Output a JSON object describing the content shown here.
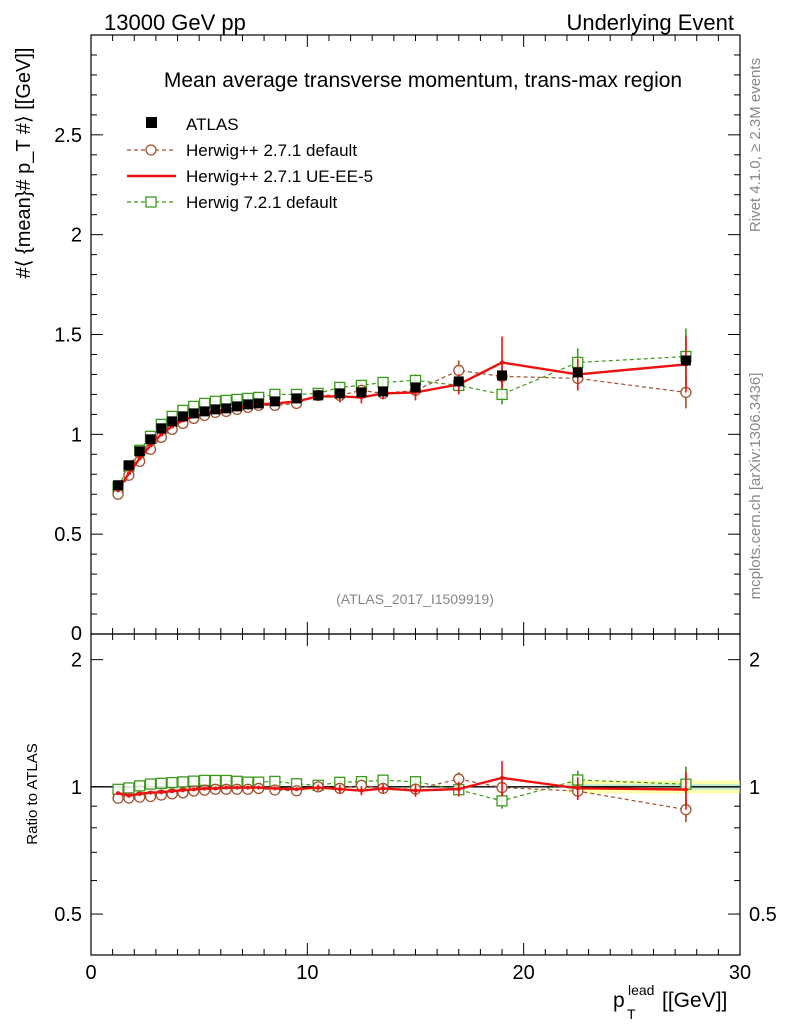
{
  "header": {
    "left": "13000 GeV pp",
    "right": "Underlying Event"
  },
  "side_labels": {
    "rivet": "Rivet 4.1.0, ≥ 2.3M events",
    "mcplots": "mcplots.cern.ch [arXiv:1306.3436]"
  },
  "chart_data": {
    "type": "scatter",
    "title": "Mean average transverse momentum, trans-max region",
    "analysis_tag": "(ATLAS_2017_I1509919)",
    "xlabel_base": "p",
    "xlabel_sup": "lead",
    "xlabel_sub": "T",
    "xlabel_unit": "[[GeV]]",
    "ylabel": "#⟨ {mean}# p_T #⟩ [[GeV]]",
    "ratio_ylabel": "Ratio to ATLAS",
    "xlim": [
      0,
      30
    ],
    "ylim": [
      0,
      3.0
    ],
    "ratio_ylim": [
      0.4,
      2.3
    ],
    "x_ticks": [
      "0",
      "10",
      "20",
      "30"
    ],
    "y_ticks": [
      "0",
      "0.5",
      "1",
      "1.5",
      "2",
      "2.5"
    ],
    "ratio_ticks": [
      "0.5",
      "1",
      "2"
    ],
    "ratio_ticks_right": [
      "0.5",
      "1",
      "2"
    ],
    "x": [
      1.25,
      1.75,
      2.25,
      2.75,
      3.25,
      3.75,
      4.25,
      4.75,
      5.25,
      5.75,
      6.25,
      6.75,
      7.25,
      7.75,
      8.5,
      9.5,
      10.5,
      11.5,
      12.5,
      13.5,
      15.0,
      17.0,
      19.0,
      22.5,
      27.5
    ],
    "series": [
      {
        "name": "ATLAS",
        "legend": "ATLAS",
        "style": "data",
        "color": "#000000",
        "values": [
          0.745,
          0.845,
          0.915,
          0.975,
          1.03,
          1.065,
          1.09,
          1.105,
          1.115,
          1.125,
          1.13,
          1.14,
          1.15,
          1.155,
          1.165,
          1.18,
          1.195,
          1.205,
          1.21,
          1.215,
          1.235,
          1.265,
          1.295,
          1.31,
          1.37
        ]
      },
      {
        "name": "Herwig++ 2.7.1 default",
        "legend": "Herwig++ 2.7.1 default",
        "style": "circle-dashed",
        "color": "#a0522d",
        "values": [
          0.7,
          0.795,
          0.865,
          0.925,
          0.985,
          1.025,
          1.055,
          1.08,
          1.095,
          1.11,
          1.115,
          1.125,
          1.135,
          1.145,
          1.145,
          1.155,
          1.195,
          1.195,
          1.22,
          1.205,
          1.22,
          1.32,
          1.29,
          1.28,
          1.21
        ],
        "errors": [
          0.01,
          0.01,
          0.01,
          0.01,
          0.01,
          0.01,
          0.01,
          0.01,
          0.01,
          0.01,
          0.01,
          0.01,
          0.01,
          0.01,
          0.01,
          0.01,
          0.02,
          0.02,
          0.02,
          0.02,
          0.03,
          0.05,
          0.05,
          0.06,
          0.08
        ]
      },
      {
        "name": "Herwig++ 2.7.1 UE-EE-5",
        "legend": "Herwig++ 2.7.1 UE-EE-5",
        "style": "solid",
        "color": "#ee1111",
        "values": [
          0.72,
          0.805,
          0.88,
          0.945,
          1.0,
          1.04,
          1.07,
          1.09,
          1.105,
          1.115,
          1.125,
          1.135,
          1.145,
          1.15,
          1.155,
          1.165,
          1.19,
          1.19,
          1.185,
          1.205,
          1.21,
          1.25,
          1.36,
          1.3,
          1.35
        ],
        "errors": [
          0.01,
          0.01,
          0.01,
          0.01,
          0.01,
          0.01,
          0.01,
          0.01,
          0.01,
          0.01,
          0.01,
          0.01,
          0.01,
          0.01,
          0.01,
          0.01,
          0.02,
          0.03,
          0.03,
          0.03,
          0.04,
          0.05,
          0.13,
          0.08,
          0.14
        ]
      },
      {
        "name": "Herwig 7.2.1 default",
        "legend": "Herwig 7.2.1 default",
        "style": "square-dashed",
        "color": "#3c9a1c",
        "values": [
          0.735,
          0.84,
          0.92,
          0.99,
          1.05,
          1.09,
          1.12,
          1.14,
          1.155,
          1.165,
          1.17,
          1.175,
          1.18,
          1.185,
          1.2,
          1.2,
          1.205,
          1.235,
          1.245,
          1.26,
          1.27,
          1.245,
          1.2,
          1.36,
          1.39
        ],
        "errors": [
          0.01,
          0.01,
          0.01,
          0.01,
          0.01,
          0.01,
          0.01,
          0.01,
          0.01,
          0.01,
          0.01,
          0.01,
          0.01,
          0.01,
          0.01,
          0.01,
          0.02,
          0.02,
          0.02,
          0.02,
          0.03,
          0.04,
          0.05,
          0.07,
          0.14
        ]
      }
    ],
    "ratio_band_color": "#ffff66",
    "ratio_band_inner_color": "#99ddee"
  }
}
